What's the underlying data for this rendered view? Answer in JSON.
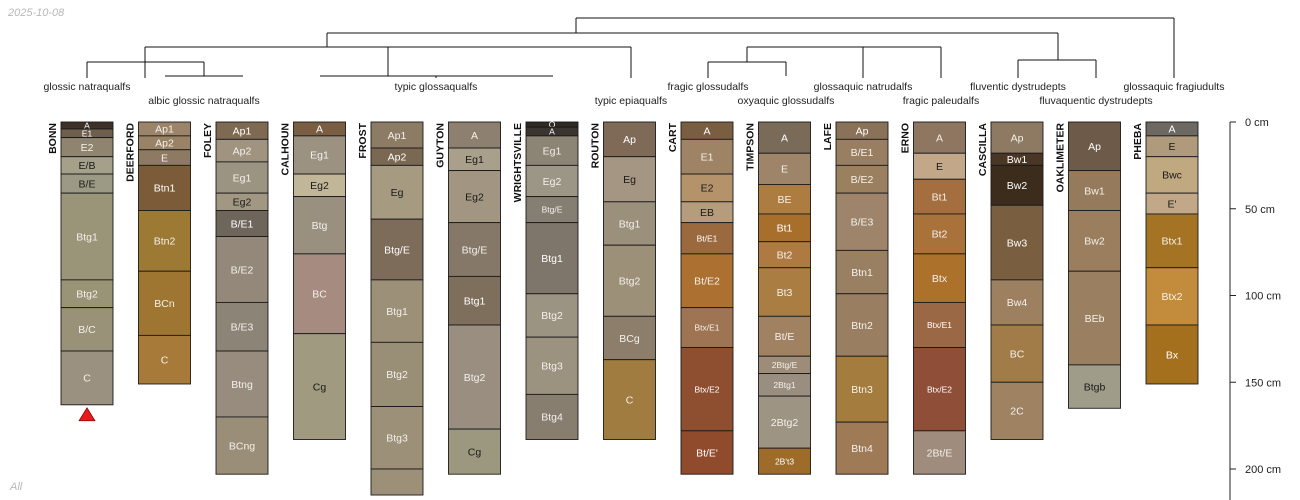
{
  "header": {
    "date": "2025-10-08"
  },
  "footer": {
    "group": "All"
  },
  "chart_data": {
    "type": "soil-profile-sketch",
    "depth_unit": "cm",
    "depth_axis": {
      "ticks": [
        0,
        50,
        100,
        150,
        200
      ],
      "labels": [
        "0 cm",
        "50 cm",
        "100 cm",
        "150 cm",
        "200 cm"
      ]
    },
    "taxa_labels": [
      {
        "name": "glossic natraqualfs",
        "row": 1
      },
      {
        "name": "albic glossic natraqualfs",
        "row": 2
      },
      {
        "name": "typic glossaqualfs",
        "row": 1
      },
      {
        "name": "typic epiaqualfs",
        "row": 2
      },
      {
        "name": "fragic glossudalfs",
        "row": 1
      },
      {
        "name": "oxyaquic glossudalfs",
        "row": 2
      },
      {
        "name": "glossaquic natrudalfs",
        "row": 1
      },
      {
        "name": "fragic paleudalfs",
        "row": 2
      },
      {
        "name": "fluventic dystrudepts",
        "row": 1
      },
      {
        "name": "fluvaquentic dystrudepts",
        "row": 2
      },
      {
        "name": "glossaquic fragiudults",
        "row": 1
      }
    ],
    "profiles": [
      {
        "id": "BONN",
        "taxon": "glossic natraqualfs",
        "truncated": true,
        "horizons": [
          {
            "name": "A",
            "top": 0,
            "bottom": 4,
            "color": "#3e3228"
          },
          {
            "name": "E1",
            "top": 4,
            "bottom": 9,
            "color": "#6e5e4c"
          },
          {
            "name": "E2",
            "top": 9,
            "bottom": 20,
            "color": "#8e8470"
          },
          {
            "name": "E/B",
            "top": 20,
            "bottom": 30,
            "color": "#a4a08a"
          },
          {
            "name": "B/E",
            "top": 30,
            "bottom": 41,
            "color": "#9c9a84"
          },
          {
            "name": "Btg1",
            "top": 41,
            "bottom": 91,
            "color": "#9a9479"
          },
          {
            "name": "Btg2",
            "top": 91,
            "bottom": 107,
            "color": "#9a9476"
          },
          {
            "name": "B/C",
            "top": 107,
            "bottom": 132,
            "color": "#999178"
          },
          {
            "name": "C",
            "top": 132,
            "bottom": 163,
            "color": "#9a9180"
          }
        ]
      },
      {
        "id": "DEERFORD",
        "taxon": "albic glossic natraqualfs",
        "horizons": [
          {
            "name": "Ap1",
            "top": 0,
            "bottom": 8,
            "color": "#9c846a"
          },
          {
            "name": "Ap2",
            "top": 8,
            "bottom": 16,
            "color": "#9a8266"
          },
          {
            "name": "E",
            "top": 16,
            "bottom": 25,
            "color": "#8e7a62"
          },
          {
            "name": "Btn1",
            "top": 25,
            "bottom": 51,
            "color": "#7c5c38"
          },
          {
            "name": "Btn2",
            "top": 51,
            "bottom": 86,
            "color": "#9c7a34"
          },
          {
            "name": "BCn",
            "top": 86,
            "bottom": 123,
            "color": "#9e7632"
          },
          {
            "name": "C",
            "top": 123,
            "bottom": 151,
            "color": "#a87a3a"
          }
        ]
      },
      {
        "id": "FOLEY",
        "taxon": "albic glossic natraqualfs",
        "horizons": [
          {
            "name": "Ap1",
            "top": 0,
            "bottom": 10,
            "color": "#7e6a52"
          },
          {
            "name": "Ap2",
            "top": 10,
            "bottom": 23,
            "color": "#a09480"
          },
          {
            "name": "Eg1",
            "top": 23,
            "bottom": 41,
            "color": "#9c9482"
          },
          {
            "name": "Eg2",
            "top": 41,
            "bottom": 51,
            "color": "#a19782"
          },
          {
            "name": "B/E1",
            "top": 51,
            "bottom": 66,
            "color": "#6e665a"
          },
          {
            "name": "B/E2",
            "top": 66,
            "bottom": 104,
            "color": "#94887a"
          },
          {
            "name": "B/E3",
            "top": 104,
            "bottom": 132,
            "color": "#8c8476"
          },
          {
            "name": "Btng",
            "top": 132,
            "bottom": 170,
            "color": "#988c7e"
          },
          {
            "name": "BCng",
            "top": 170,
            "bottom": 203,
            "color": "#9a8e78"
          }
        ]
      },
      {
        "id": "CALHOUN",
        "taxon": "typic glossaqualfs",
        "horizons": [
          {
            "name": "A",
            "top": 0,
            "bottom": 8,
            "color": "#7a5e44"
          },
          {
            "name": "Eg1",
            "top": 8,
            "bottom": 30,
            "color": "#9c9282"
          },
          {
            "name": "Eg2",
            "top": 30,
            "bottom": 43,
            "color": "#c2b698"
          },
          {
            "name": "Btg",
            "top": 43,
            "bottom": 76,
            "color": "#9a9080"
          },
          {
            "name": "BC",
            "top": 76,
            "bottom": 122,
            "color": "#a68c80"
          },
          {
            "name": "Cg",
            "top": 122,
            "bottom": 183,
            "color": "#a09a80"
          }
        ]
      },
      {
        "id": "FROST",
        "taxon": "typic glossaqualfs",
        "truncated": true,
        "horizons": [
          {
            "name": "Ap1",
            "top": 0,
            "bottom": 15,
            "color": "#8c7c66"
          },
          {
            "name": "Ap2",
            "top": 15,
            "bottom": 25,
            "color": "#7a6852"
          },
          {
            "name": "Eg",
            "top": 25,
            "bottom": 56,
            "color": "#a69a80"
          },
          {
            "name": "Btg/E",
            "top": 56,
            "bottom": 91,
            "color": "#7e6c5a"
          },
          {
            "name": "Btg1",
            "top": 91,
            "bottom": 127,
            "color": "#9c9078"
          },
          {
            "name": "Btg2",
            "top": 127,
            "bottom": 164,
            "color": "#998e76"
          },
          {
            "name": "Btg3",
            "top": 164,
            "bottom": 200,
            "color": "#9c9078"
          },
          {
            "name": "",
            "top": 200,
            "bottom": 215,
            "color": "#9c9078"
          }
        ]
      },
      {
        "id": "GUYTON",
        "taxon": "typic glossaqualfs",
        "horizons": [
          {
            "name": "A",
            "top": 0,
            "bottom": 15,
            "color": "#8e8070"
          },
          {
            "name": "Eg1",
            "top": 15,
            "bottom": 28,
            "color": "#a8a08a"
          },
          {
            "name": "Eg2",
            "top": 28,
            "bottom": 58,
            "color": "#a29682"
          },
          {
            "name": "Btg/E",
            "top": 58,
            "bottom": 89,
            "color": "#857868"
          },
          {
            "name": "Btg1",
            "top": 89,
            "bottom": 117,
            "color": "#7e6e5c"
          },
          {
            "name": "Btg2",
            "top": 117,
            "bottom": 177,
            "color": "#9a8e80"
          },
          {
            "name": "Cg",
            "top": 177,
            "bottom": 203,
            "color": "#9c9880"
          }
        ]
      },
      {
        "id": "WRIGHTSVILLE",
        "taxon": "typic glossaqualfs",
        "horizons": [
          {
            "name": "O",
            "top": 0,
            "bottom": 3,
            "color": "#2e2a24"
          },
          {
            "name": "A",
            "top": 3,
            "bottom": 8,
            "color": "#3a3530"
          },
          {
            "name": "Eg1",
            "top": 8,
            "bottom": 25,
            "color": "#8c8474"
          },
          {
            "name": "Eg2",
            "top": 25,
            "bottom": 43,
            "color": "#9c9686"
          },
          {
            "name": "Btg/E",
            "top": 43,
            "bottom": 58,
            "color": "#857e72"
          },
          {
            "name": "Btg1",
            "top": 58,
            "bottom": 99,
            "color": "#7e766a"
          },
          {
            "name": "Btg2",
            "top": 99,
            "bottom": 124,
            "color": "#9c9482"
          },
          {
            "name": "Btg3",
            "top": 124,
            "bottom": 157,
            "color": "#9c9280"
          },
          {
            "name": "Btg4",
            "top": 157,
            "bottom": 183,
            "color": "#877e70"
          }
        ]
      },
      {
        "id": "ROUTON",
        "taxon": "typic epiaqualfs",
        "horizons": [
          {
            "name": "Ap",
            "top": 0,
            "bottom": 20,
            "color": "#7e6a56"
          },
          {
            "name": "Eg",
            "top": 20,
            "bottom": 46,
            "color": "#a49682"
          },
          {
            "name": "Btg1",
            "top": 46,
            "bottom": 71,
            "color": "#9a907c"
          },
          {
            "name": "Btg2",
            "top": 71,
            "bottom": 112,
            "color": "#9c9078"
          },
          {
            "name": "BCg",
            "top": 112,
            "bottom": 137,
            "color": "#8c7e6a"
          },
          {
            "name": "C",
            "top": 137,
            "bottom": 183,
            "color": "#a07c40"
          }
        ]
      },
      {
        "id": "CART",
        "taxon": "fragic glossudalfs",
        "horizons": [
          {
            "name": "A",
            "top": 0,
            "bottom": 10,
            "color": "#7a5e42"
          },
          {
            "name": "E1",
            "top": 10,
            "bottom": 30,
            "color": "#9e8464"
          },
          {
            "name": "E2",
            "top": 30,
            "bottom": 46,
            "color": "#b4926a"
          },
          {
            "name": "EB",
            "top": 46,
            "bottom": 58,
            "color": "#b49c7c"
          },
          {
            "name": "Bt/E1",
            "top": 58,
            "bottom": 76,
            "color": "#9a6a3e"
          },
          {
            "name": "Bt/E2",
            "top": 76,
            "bottom": 107,
            "color": "#ac7030"
          },
          {
            "name": "Btx/E1",
            "top": 107,
            "bottom": 130,
            "color": "#9e7452"
          },
          {
            "name": "Btx/E2",
            "top": 130,
            "bottom": 178,
            "color": "#8e4e30"
          },
          {
            "name": "Bt/E'",
            "top": 178,
            "bottom": 203,
            "color": "#904a2c"
          }
        ]
      },
      {
        "id": "TIMPSON",
        "taxon": "oxyaquic glossudalfs",
        "horizons": [
          {
            "name": "A",
            "top": 0,
            "bottom": 18,
            "color": "#7a6a58"
          },
          {
            "name": "E",
            "top": 18,
            "bottom": 36,
            "color": "#9e8468"
          },
          {
            "name": "BE",
            "top": 36,
            "bottom": 53,
            "color": "#ac7c40"
          },
          {
            "name": "Bt1",
            "top": 53,
            "bottom": 69,
            "color": "#a86e2c"
          },
          {
            "name": "Bt2",
            "top": 69,
            "bottom": 84,
            "color": "#ae7a42"
          },
          {
            "name": "Bt3",
            "top": 84,
            "bottom": 112,
            "color": "#aa7e42"
          },
          {
            "name": "Bt/E",
            "top": 112,
            "bottom": 135,
            "color": "#a08262"
          },
          {
            "name": "2Btg/E",
            "top": 135,
            "bottom": 145,
            "color": "#9c8c78"
          },
          {
            "name": "2Btg1",
            "top": 145,
            "bottom": 158,
            "color": "#9a8e80"
          },
          {
            "name": "2Btg2",
            "top": 158,
            "bottom": 188,
            "color": "#9e9484"
          },
          {
            "name": "2B't3",
            "top": 188,
            "bottom": 203,
            "color": "#9e6c2a"
          }
        ]
      },
      {
        "id": "LAFE",
        "taxon": "glossaquic natrudalfs",
        "horizons": [
          {
            "name": "Ap",
            "top": 0,
            "bottom": 10,
            "color": "#8a7258"
          },
          {
            "name": "B/E1",
            "top": 10,
            "bottom": 25,
            "color": "#9a7e62"
          },
          {
            "name": "B/E2",
            "top": 25,
            "bottom": 41,
            "color": "#9a805e"
          },
          {
            "name": "B/E3",
            "top": 41,
            "bottom": 74,
            "color": "#9e846a"
          },
          {
            "name": "Btn1",
            "top": 74,
            "bottom": 99,
            "color": "#9a8062"
          },
          {
            "name": "Btn2",
            "top": 99,
            "bottom": 135,
            "color": "#9a7e62"
          },
          {
            "name": "Btn3",
            "top": 135,
            "bottom": 173,
            "color": "#a47c3e"
          },
          {
            "name": "Btn4",
            "top": 173,
            "bottom": 203,
            "color": "#9e7a56"
          }
        ]
      },
      {
        "id": "ERNO",
        "taxon": "fragic paleudalfs",
        "horizons": [
          {
            "name": "A",
            "top": 0,
            "bottom": 18,
            "color": "#8e7660"
          },
          {
            "name": "E",
            "top": 18,
            "bottom": 33,
            "color": "#c2a888"
          },
          {
            "name": "Bt1",
            "top": 33,
            "bottom": 53,
            "color": "#a46e3e"
          },
          {
            "name": "Bt2",
            "top": 53,
            "bottom": 76,
            "color": "#a8723a"
          },
          {
            "name": "Btx",
            "top": 76,
            "bottom": 104,
            "color": "#ac722c"
          },
          {
            "name": "Btx/E1",
            "top": 104,
            "bottom": 130,
            "color": "#9a6844"
          },
          {
            "name": "Btx/E2",
            "top": 130,
            "bottom": 178,
            "color": "#8e4e38"
          },
          {
            "name": "2Bt/E",
            "top": 178,
            "bottom": 203,
            "color": "#a08c7c"
          }
        ]
      },
      {
        "id": "CASCILLA",
        "taxon": "fluventic dystrudepts",
        "horizons": [
          {
            "name": "Ap",
            "top": 0,
            "bottom": 18,
            "color": "#8e7a62"
          },
          {
            "name": "Bw1",
            "top": 18,
            "bottom": 25,
            "color": "#4a3624"
          },
          {
            "name": "Bw2",
            "top": 25,
            "bottom": 48,
            "color": "#3c2c1c"
          },
          {
            "name": "Bw3",
            "top": 48,
            "bottom": 91,
            "color": "#7a5e40"
          },
          {
            "name": "Bw4",
            "top": 91,
            "bottom": 117,
            "color": "#9c8060"
          },
          {
            "name": "BC",
            "top": 117,
            "bottom": 150,
            "color": "#a27c48"
          },
          {
            "name": "2C",
            "top": 150,
            "bottom": 183,
            "color": "#9e8262"
          }
        ]
      },
      {
        "id": "OAKLIMETER",
        "taxon": "fluvaquentic dystrudepts",
        "horizons": [
          {
            "name": "Ap",
            "top": 0,
            "bottom": 28,
            "color": "#6e5a48"
          },
          {
            "name": "Bw1",
            "top": 28,
            "bottom": 51,
            "color": "#967a5c"
          },
          {
            "name": "Bw2",
            "top": 51,
            "bottom": 86,
            "color": "#9a7e5e"
          },
          {
            "name": "BEb",
            "top": 86,
            "bottom": 140,
            "color": "#9a8060"
          },
          {
            "name": "Btgb",
            "top": 140,
            "bottom": 165,
            "color": "#a09c8a"
          }
        ]
      },
      {
        "id": "PHEBA",
        "taxon": "glossaquic fragiudults",
        "horizons": [
          {
            "name": "A",
            "top": 0,
            "bottom": 8,
            "color": "#6e6862"
          },
          {
            "name": "E",
            "top": 8,
            "bottom": 20,
            "color": "#b09a7c"
          },
          {
            "name": "Bwc",
            "top": 20,
            "bottom": 41,
            "color": "#c0a880"
          },
          {
            "name": "E'",
            "top": 41,
            "bottom": 53,
            "color": "#c0a888"
          },
          {
            "name": "Btx1",
            "top": 53,
            "bottom": 84,
            "color": "#a47424"
          },
          {
            "name": "Btx2",
            "top": 84,
            "bottom": 117,
            "color": "#c28c3c"
          },
          {
            "name": "Bx",
            "top": 117,
            "bottom": 151,
            "color": "#a4701e"
          }
        ]
      }
    ]
  }
}
